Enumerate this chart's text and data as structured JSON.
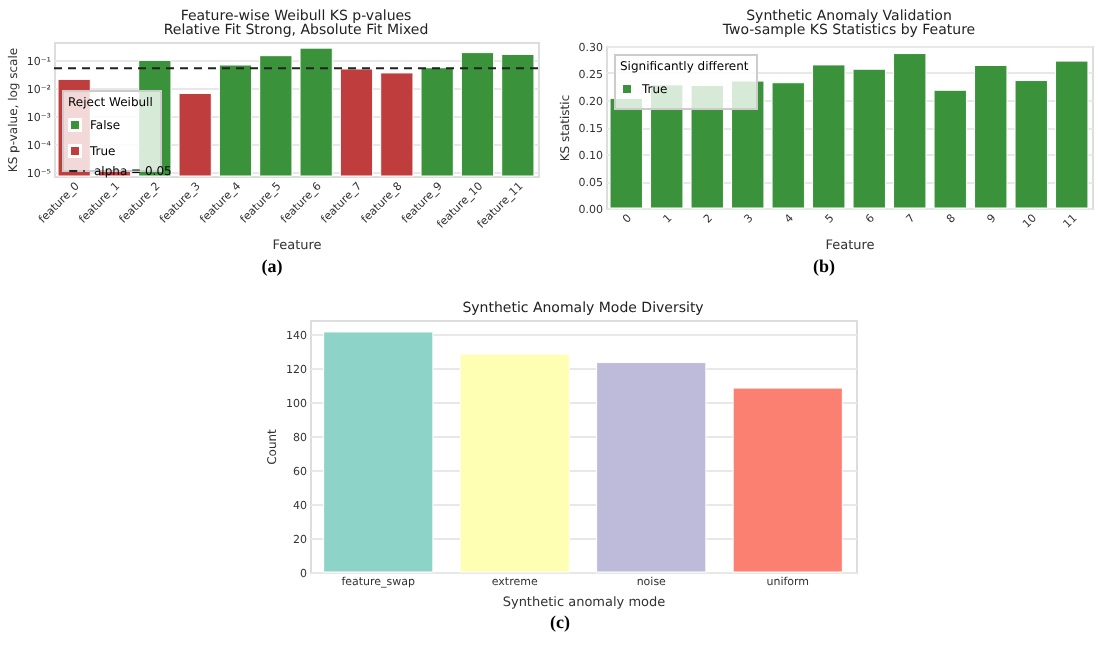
{
  "chart_data": [
    {
      "type": "bar",
      "title": "Feature-wise Weibull KS p-values",
      "subtitle": "Relative Fit Strong, Absolute Fit Mixed",
      "xlabel": "Feature",
      "ylabel": "KS p-value, log scale",
      "legend_title": "Reject Weibull",
      "annotations": [
        "(a)"
      ],
      "categories": [
        "feature_0",
        "feature_1",
        "feature_2",
        "feature_3",
        "feature_4",
        "feature_5",
        "feature_6",
        "feature_7",
        "feature_8",
        "feature_9",
        "feature_10",
        "feature_11"
      ],
      "series": [
        {
          "name": "False",
          "color": "#3a923a",
          "values": [
            null,
            null,
            0.095,
            null,
            0.065,
            0.14,
            0.26,
            null,
            null,
            0.052,
            0.18,
            0.155
          ]
        },
        {
          "name": "True",
          "color": "#c03d3e",
          "values": [
            0.02,
            1.1e-05,
            null,
            0.0063,
            null,
            null,
            null,
            0.047,
            0.034,
            null,
            null,
            null
          ]
        }
      ],
      "log": "y",
      "ylim": [
        7.2e-06,
        0.43
      ],
      "yticks": [
        {
          "value": 1e-05,
          "label": "10⁻⁵"
        },
        {
          "value": 0.0001,
          "label": "10⁻⁴"
        },
        {
          "value": 0.001,
          "label": "10⁻³"
        },
        {
          "value": 0.01,
          "label": "10⁻²"
        },
        {
          "value": 0.1,
          "label": "10⁻¹"
        }
      ],
      "ref_lines": [
        {
          "axis": "y",
          "value": 0.05,
          "label": "alpha = 0.05",
          "color": "#222222",
          "line_style": "dashed"
        }
      ],
      "grid": "y",
      "legend": "left"
    },
    {
      "type": "bar",
      "title": "Synthetic Anomaly Validation",
      "subtitle": "Two-sample KS Statistics by Feature",
      "xlabel": "Feature",
      "ylabel": "KS statistic",
      "legend_title": "Significantly different",
      "annotations": [
        "(b)"
      ],
      "categories": [
        "0",
        "1",
        "2",
        "3",
        "4",
        "5",
        "6",
        "7",
        "8",
        "9",
        "10",
        "11"
      ],
      "series": [
        {
          "name": "True",
          "color": "#3a923a",
          "values": [
            0.203,
            0.228,
            0.227,
            0.235,
            0.232,
            0.265,
            0.257,
            0.286,
            0.218,
            0.264,
            0.236,
            0.272
          ]
        }
      ],
      "ylim": [
        0,
        0.3
      ],
      "yticks": [
        {
          "value": 0,
          "label": "0.00"
        },
        0.05,
        {
          "value": 0.1,
          "label": "0.10"
        },
        0.15,
        {
          "value": 0.2,
          "label": "0.20"
        },
        0.25,
        {
          "value": 0.3,
          "label": "0.30"
        }
      ],
      "grid": "y",
      "legend": "top left"
    },
    {
      "type": "bar",
      "title": "Synthetic Anomaly Mode Diversity",
      "xlabel": "Synthetic anomaly mode",
      "ylabel": "Count",
      "annotations": [
        "(c)"
      ],
      "categories": [
        "feature_swap",
        "extreme",
        "noise",
        "uniform"
      ],
      "values": [
        141,
        128,
        123,
        108
      ],
      "colors": [
        "#8dd3c7",
        "#ffffb3",
        "#bebada",
        "#fb8072"
      ],
      "ylim": [
        0,
        148
      ],
      "yticks": [
        0,
        20,
        40,
        60,
        80,
        100,
        120,
        140
      ],
      "grid": "y"
    }
  ]
}
